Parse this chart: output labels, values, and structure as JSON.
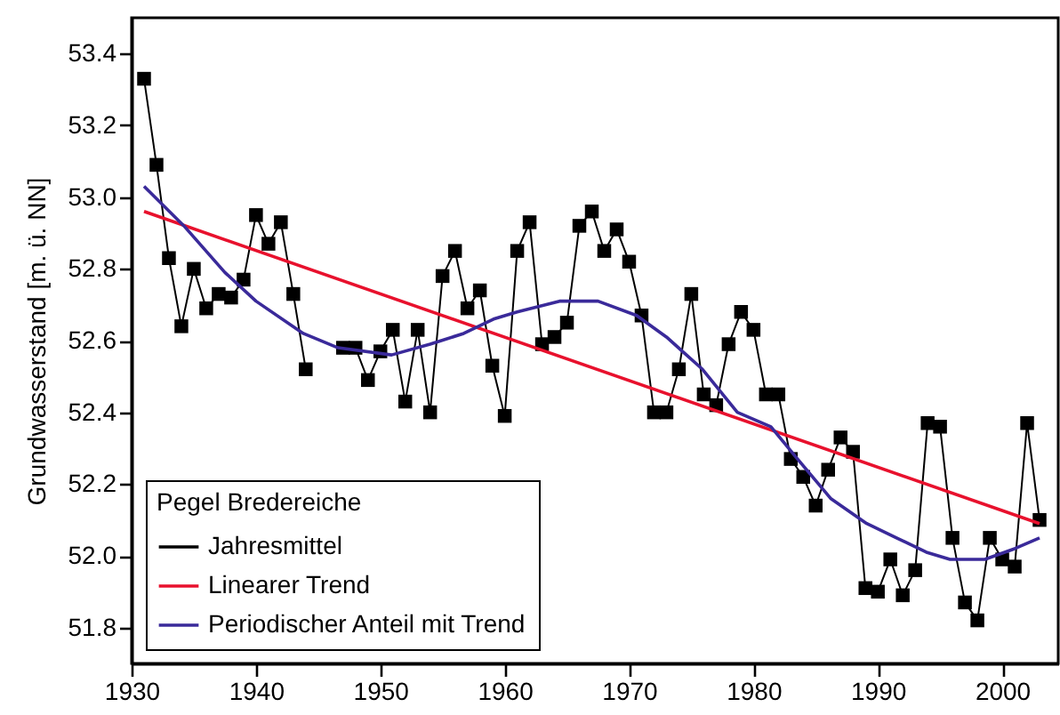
{
  "chart_data": {
    "type": "line",
    "ylabel": "Grundwasserstand [m. ü. NN]",
    "legend_title": "Pegel Bredereiche",
    "legend": "bottom left",
    "grid": false,
    "xlim": [
      1930,
      2004.5
    ],
    "xticks": [
      1930,
      1940,
      1950,
      1960,
      1970,
      1980,
      1990,
      2000
    ],
    "ylim": [
      51.7,
      53.5
    ],
    "yticks": [
      51.8,
      {
        "value": 52,
        "label": "52.0"
      },
      52.2,
      52.4,
      52.6,
      52.8,
      {
        "value": 53,
        "label": "53.0"
      },
      53.2,
      53.4
    ],
    "x": [
      1931,
      1932,
      1933,
      1934,
      1935,
      1936,
      1937,
      1938,
      1939,
      1940,
      1941,
      1942,
      1943,
      1944,
      1945,
      1946,
      1947,
      1948,
      1949,
      1950,
      1951,
      1952,
      1953,
      1954,
      1955,
      1956,
      1957,
      1958,
      1959,
      1960,
      1961,
      1962,
      1963,
      1964,
      1965,
      1966,
      1967,
      1968,
      1969,
      1970,
      1971,
      1972,
      1973,
      1974,
      1975,
      1976,
      1977,
      1978,
      1979,
      1980,
      1981,
      1982,
      1983,
      1984,
      1985,
      1986,
      1987,
      1988,
      1989,
      1990,
      1991,
      1992,
      1993,
      1994,
      1995,
      1996,
      1997,
      1998,
      1999,
      2000,
      2001,
      2002,
      2003
    ],
    "series": [
      {
        "name": "Jahresmittel",
        "color": "#000000",
        "marker": "square",
        "values": [
          53.33,
          53.09,
          52.83,
          52.64,
          52.8,
          52.69,
          52.73,
          52.72,
          52.77,
          52.95,
          52.87,
          52.93,
          52.73,
          52.52,
          null,
          null,
          52.58,
          52.58,
          52.49,
          52.57,
          52.63,
          52.43,
          52.63,
          52.4,
          52.78,
          52.85,
          52.69,
          52.74,
          52.53,
          52.39,
          52.85,
          52.93,
          52.59,
          52.61,
          52.65,
          52.92,
          52.96,
          52.85,
          52.91,
          52.82,
          52.67,
          52.4,
          52.4,
          52.52,
          52.73,
          52.45,
          52.42,
          52.59,
          52.68,
          52.63,
          52.45,
          52.45,
          52.27,
          52.22,
          52.14,
          52.24,
          52.33,
          52.29,
          51.91,
          51.9,
          51.99,
          51.89,
          51.96,
          52.37,
          52.36,
          52.05,
          51.87,
          51.82,
          52.05,
          51.99,
          51.97,
          52.37,
          52.1
        ]
      },
      {
        "name": "Linearer Trend",
        "color": "#e8112d",
        "x": [
          1931,
          2003
        ],
        "values": [
          52.96,
          52.09
        ]
      },
      {
        "name": "Periodischer Anteil mit Trend",
        "color": "#3a2a9a",
        "x": [
          1931,
          1934.2,
          1937.5,
          1940,
          1943.8,
          1946.6,
          1950.9,
          1954,
          1956.7,
          1959.1,
          1961,
          1964.4,
          1967.5,
          1970.6,
          1973,
          1975.9,
          1978.7,
          1981.4,
          1983.3,
          1986.2,
          1989.1,
          1991.5,
          1993.9,
          1995.8,
          1998.6,
          2001,
          2003
        ],
        "values": [
          53.03,
          52.92,
          52.79,
          52.71,
          52.62,
          52.58,
          52.56,
          52.59,
          52.62,
          52.66,
          52.68,
          52.71,
          52.71,
          52.67,
          52.61,
          52.52,
          52.4,
          52.36,
          52.28,
          52.16,
          52.09,
          52.05,
          52.01,
          51.99,
          51.99,
          52.02,
          52.05
        ]
      }
    ]
  }
}
